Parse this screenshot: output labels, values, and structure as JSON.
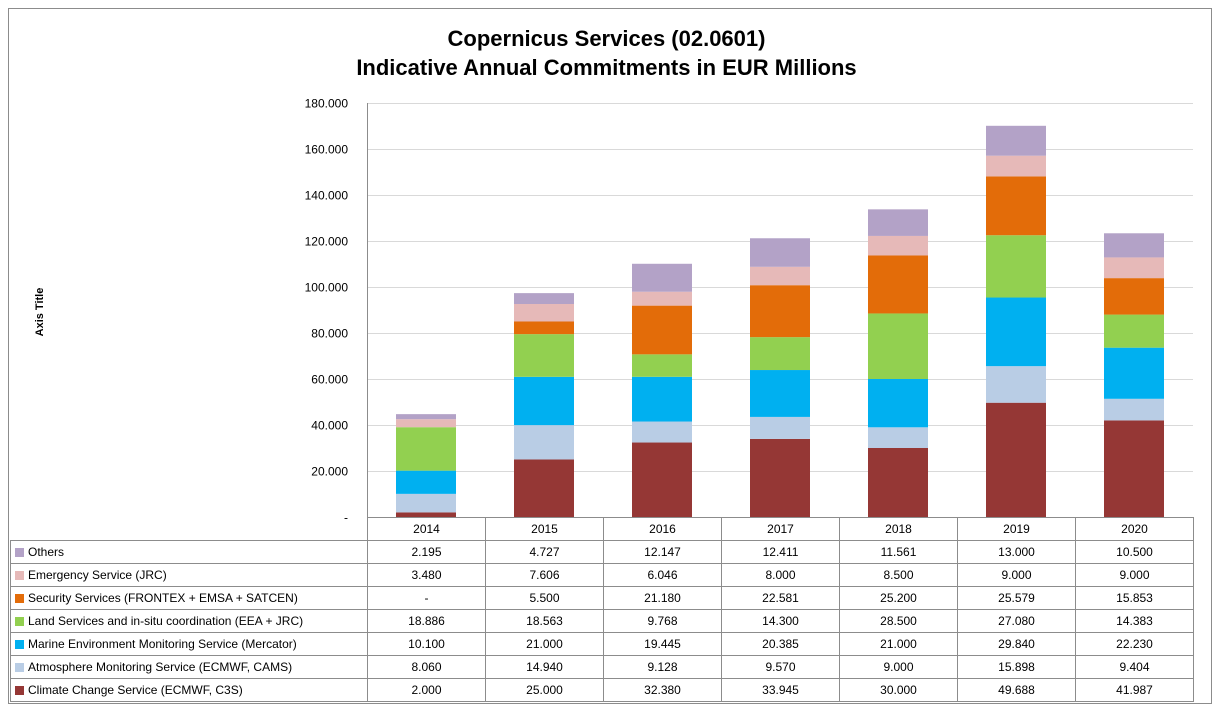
{
  "chart_data": {
    "type": "bar",
    "stacked": true,
    "title": "Copernicus Services (02.0601)",
    "subtitle": "Indicative Annual Commitments in EUR Millions",
    "ylabel": "Axis Title",
    "xlabel": "",
    "ylim": [
      0,
      180
    ],
    "yticks": [
      {
        "value": 0,
        "label": "-"
      },
      {
        "value": 20,
        "label": "20.000"
      },
      {
        "value": 40,
        "label": "40.000"
      },
      {
        "value": 60,
        "label": "60.000"
      },
      {
        "value": 80,
        "label": "80.000"
      },
      {
        "value": 100,
        "label": "100.000"
      },
      {
        "value": 120,
        "label": "120.000"
      },
      {
        "value": 140,
        "label": "140.000"
      },
      {
        "value": 160,
        "label": "160.000"
      },
      {
        "value": 180,
        "label": "180.000"
      }
    ],
    "grid": true,
    "legend": "data-table",
    "categories": [
      "2014",
      "2015",
      "2016",
      "2017",
      "2018",
      "2019",
      "2020"
    ],
    "series": [
      {
        "name": "Climate Change Service (ECMWF, C3S)",
        "color": "#953735",
        "values": [
          2.0,
          25.0,
          32.38,
          33.945,
          30.0,
          49.688,
          41.987
        ],
        "labels": [
          "2.000",
          "25.000",
          "32.380",
          "33.945",
          "30.000",
          "49.688",
          "41.987"
        ]
      },
      {
        "name": "Atmosphere Monitoring Service (ECMWF, CAMS)",
        "color": "#b9cde5",
        "values": [
          8.06,
          14.94,
          9.128,
          9.57,
          9.0,
          15.898,
          9.404
        ],
        "labels": [
          "8.060",
          "14.940",
          "9.128",
          "9.570",
          "9.000",
          "15.898",
          "9.404"
        ]
      },
      {
        "name": "Marine Environment Monitoring Service (Mercator)",
        "color": "#00b0f0",
        "values": [
          10.1,
          21.0,
          19.445,
          20.385,
          21.0,
          29.84,
          22.23
        ],
        "labels": [
          "10.100",
          "21.000",
          "19.445",
          "20.385",
          "21.000",
          "29.840",
          "22.230"
        ]
      },
      {
        "name": "Land Services and in-situ coordination (EEA + JRC)",
        "color": "#92d050",
        "values": [
          18.886,
          18.563,
          9.768,
          14.3,
          28.5,
          27.08,
          14.383
        ],
        "labels": [
          "18.886",
          "18.563",
          "9.768",
          "14.300",
          "28.500",
          "27.080",
          "14.383"
        ]
      },
      {
        "name": "Security Services (FRONTEX + EMSA + SATCEN)",
        "color": "#e36c09",
        "values": [
          0,
          5.5,
          21.18,
          22.581,
          25.2,
          25.579,
          15.853
        ],
        "labels": [
          "-",
          "5.500",
          "21.180",
          "22.581",
          "25.200",
          "25.579",
          "15.853"
        ]
      },
      {
        "name": "Emergency Service (JRC)",
        "color": "#e6b9b8",
        "values": [
          3.48,
          7.606,
          6.046,
          8.0,
          8.5,
          9.0,
          9.0
        ],
        "labels": [
          "3.480",
          "7.606",
          "6.046",
          "8.000",
          "8.500",
          "9.000",
          "9.000"
        ]
      },
      {
        "name": "Others",
        "color": "#b3a2c7",
        "values": [
          2.195,
          4.727,
          12.147,
          12.411,
          11.561,
          13.0,
          10.5
        ],
        "labels": [
          "2.195",
          "4.727",
          "12.147",
          "12.411",
          "11.561",
          "13.000",
          "10.500"
        ]
      }
    ]
  }
}
